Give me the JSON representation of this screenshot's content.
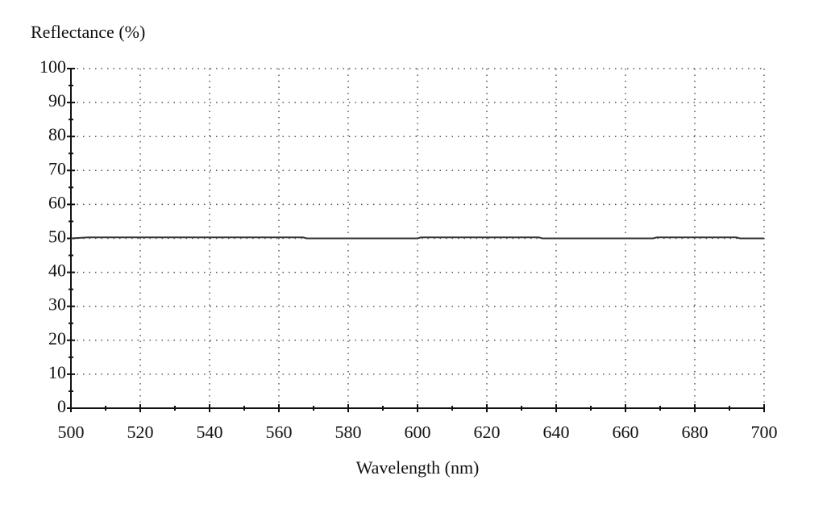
{
  "chart_data": {
    "type": "line",
    "y_label": "Reflectance (%)",
    "x_label": "Wavelength (nm)",
    "x": [
      500,
      505,
      567,
      568,
      600,
      601,
      635,
      636,
      668,
      669,
      692,
      693,
      700
    ],
    "values": [
      50,
      50.3,
      50.3,
      50,
      50,
      50.3,
      50.3,
      50,
      50,
      50.3,
      50.3,
      50,
      50
    ],
    "color": "#333333",
    "xlim": [
      500,
      700
    ],
    "ylim": [
      0,
      100
    ],
    "xticks": [
      500,
      520,
      540,
      560,
      580,
      600,
      620,
      640,
      660,
      680,
      700
    ],
    "yticks": [
      0,
      10,
      20,
      30,
      40,
      50,
      60,
      70,
      80,
      90,
      100
    ],
    "xminorticks": [
      510,
      530,
      550,
      570,
      590,
      610,
      630,
      650,
      670,
      690
    ],
    "yminorticks": [
      5,
      15,
      25,
      35,
      45,
      55,
      65,
      75,
      85,
      95
    ],
    "grid": true
  }
}
